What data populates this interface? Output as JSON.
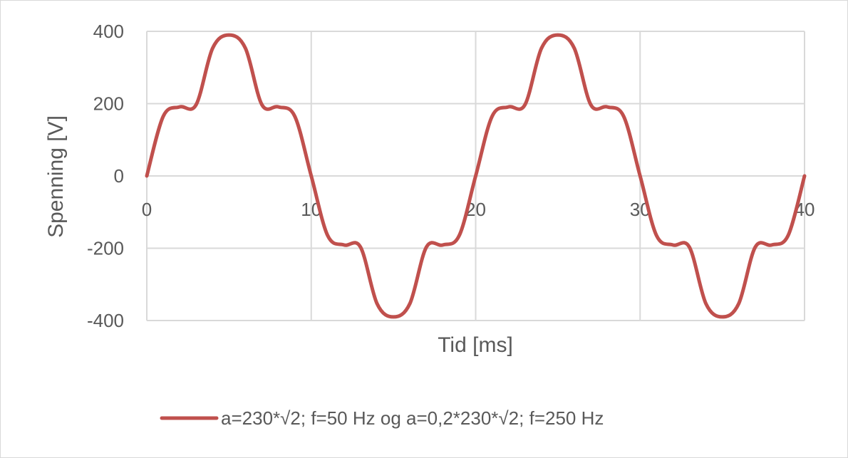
{
  "chart_data": {
    "type": "line",
    "title": "",
    "xlabel": "Tid [ms]",
    "ylabel": "Spenning [V]",
    "xlim": [
      0,
      40
    ],
    "ylim": [
      -400,
      400
    ],
    "xticks": [
      0,
      10,
      20,
      30,
      40
    ],
    "yticks": [
      -400,
      -200,
      0,
      200,
      400
    ],
    "xtick_labels": [
      "0",
      "10",
      "20",
      "30",
      "40"
    ],
    "ytick_labels": [
      "-400",
      "-200",
      "0",
      "200",
      "400"
    ],
    "grid": true,
    "legend_position": "bottom",
    "series": [
      {
        "name": "a=230*√2; f=50 Hz og a=0,2*230*√2; f=250 Hz",
        "color": "#c0504d",
        "x": [
          0,
          1,
          2,
          3,
          4,
          5,
          6,
          7,
          8,
          9,
          10,
          11,
          12,
          13,
          14,
          15,
          16,
          17,
          18,
          19,
          20,
          21,
          22,
          23,
          24,
          25,
          26,
          27,
          28,
          29,
          30,
          31,
          32,
          33,
          34,
          35,
          36,
          37,
          38,
          39,
          40
        ],
        "y": [
          0,
          165,
          191,
          197,
          353,
          390,
          353,
          197,
          191,
          165,
          0,
          -165,
          -191,
          -197,
          -353,
          -390,
          -353,
          -197,
          -191,
          -165,
          0,
          165,
          191,
          197,
          353,
          390,
          353,
          197,
          191,
          165,
          0,
          -165,
          -191,
          -197,
          -353,
          -390,
          -353,
          -197,
          -191,
          -165,
          0
        ]
      }
    ]
  }
}
